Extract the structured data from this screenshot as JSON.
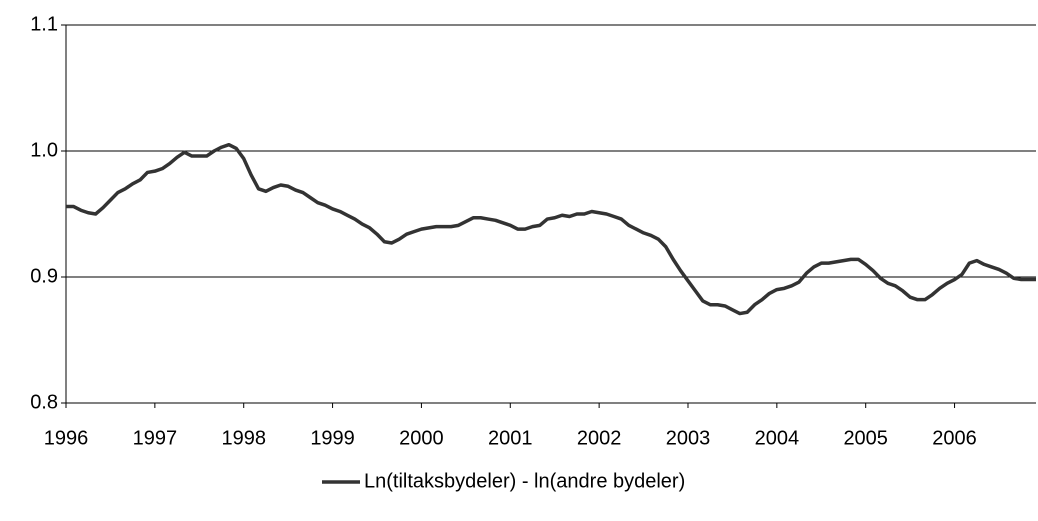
{
  "chart_data": {
    "type": "line",
    "categories": [
      "1996",
      null,
      null,
      null,
      null,
      null,
      null,
      null,
      null,
      null,
      null,
      null,
      "1997",
      null,
      null,
      null,
      null,
      null,
      null,
      null,
      null,
      null,
      null,
      null,
      "1998",
      null,
      null,
      null,
      null,
      null,
      null,
      null,
      null,
      null,
      null,
      null,
      "1999",
      null,
      null,
      null,
      null,
      null,
      null,
      null,
      null,
      null,
      null,
      null,
      "2000",
      null,
      null,
      null,
      null,
      null,
      null,
      null,
      null,
      null,
      null,
      null,
      "2001",
      null,
      null,
      null,
      null,
      null,
      null,
      null,
      null,
      null,
      null,
      null,
      "2002",
      null,
      null,
      null,
      null,
      null,
      null,
      null,
      null,
      null,
      null,
      null,
      "2003",
      null,
      null,
      null,
      null,
      null,
      null,
      null,
      null,
      null,
      null,
      null,
      "2004",
      null,
      null,
      null,
      null,
      null,
      null,
      null,
      null,
      null,
      null,
      null,
      "2005",
      null,
      null,
      null,
      null,
      null,
      null,
      null,
      null,
      null,
      null,
      null,
      "2006",
      null,
      null,
      null,
      null,
      null,
      null,
      null,
      null,
      null,
      null,
      null
    ],
    "series": [
      {
        "name": "Ln(tiltaksbydeler) - ln(andre bydeler)",
        "color": "#333333",
        "values": [
          0.956,
          0.956,
          0.953,
          0.951,
          0.95,
          0.955,
          0.961,
          0.967,
          0.97,
          0.974,
          0.977,
          0.983,
          0.984,
          0.986,
          0.99,
          0.995,
          0.999,
          0.996,
          0.996,
          0.996,
          1.0,
          1.003,
          1.005,
          1.002,
          0.994,
          0.981,
          0.97,
          0.968,
          0.971,
          0.973,
          0.972,
          0.969,
          0.967,
          0.963,
          0.959,
          0.957,
          0.954,
          0.952,
          0.949,
          0.946,
          0.942,
          0.939,
          0.934,
          0.928,
          0.927,
          0.93,
          0.934,
          0.936,
          0.938,
          0.939,
          0.94,
          0.94,
          0.94,
          0.941,
          0.944,
          0.947,
          0.947,
          0.946,
          0.945,
          0.943,
          0.941,
          0.938,
          0.938,
          0.94,
          0.941,
          0.946,
          0.947,
          0.949,
          0.948,
          0.95,
          0.95,
          0.952,
          0.951,
          0.95,
          0.948,
          0.946,
          0.941,
          0.938,
          0.935,
          0.933,
          0.93,
          0.924,
          0.914,
          0.905,
          0.897,
          0.889,
          0.881,
          0.878,
          0.878,
          0.877,
          0.874,
          0.871,
          0.872,
          0.878,
          0.882,
          0.887,
          0.89,
          0.891,
          0.893,
          0.896,
          0.903,
          0.908,
          0.911,
          0.911,
          0.912,
          0.913,
          0.914,
          0.914,
          0.91,
          0.905,
          0.899,
          0.895,
          0.893,
          0.889,
          0.884,
          0.882,
          0.882,
          0.886,
          0.891,
          0.895,
          0.898,
          0.902,
          0.911,
          0.913,
          0.91,
          0.908,
          0.906,
          0.903,
          0.899,
          0.898,
          0.898,
          0.898
        ]
      }
    ],
    "ylim": [
      0.8,
      1.1
    ],
    "yticks": [
      0.8,
      0.9,
      {
        "value": 1,
        "label": "1.0"
      },
      1.1
    ],
    "grid": true,
    "legend": "bottom"
  }
}
